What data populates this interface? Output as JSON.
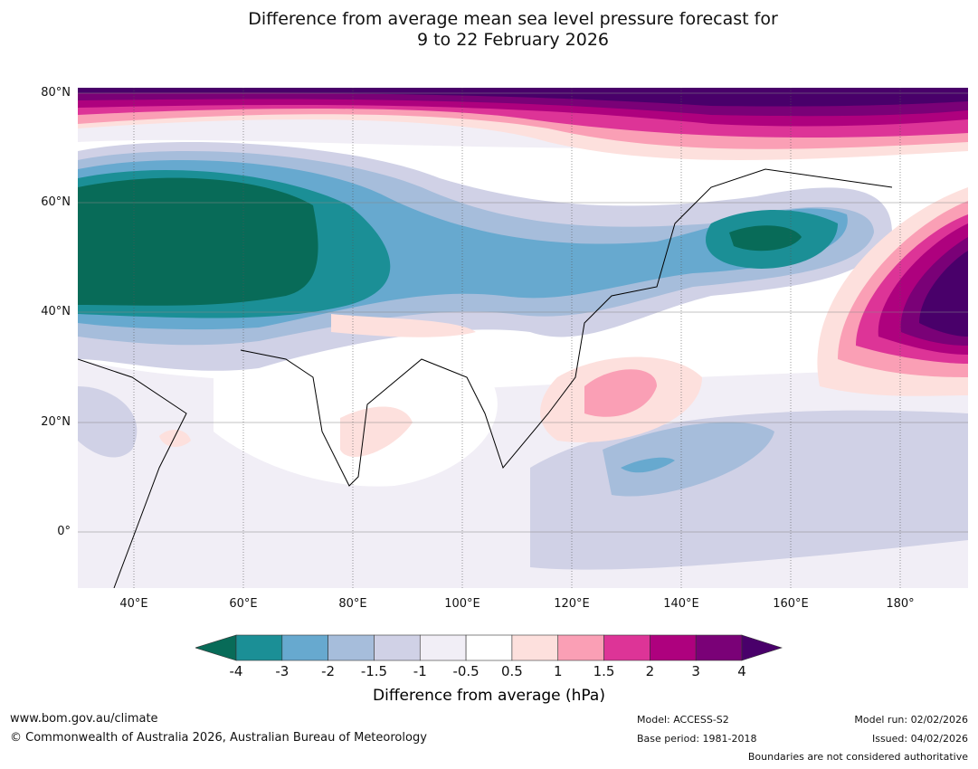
{
  "title": {
    "line1": "Difference from average mean sea level pressure forecast for",
    "line2": "9 to 22 February 2026"
  },
  "axes": {
    "lat_labels": [
      "80°N",
      "60°N",
      "40°N",
      "20°N",
      "0°"
    ],
    "lon_labels": [
      "40°E",
      "60°E",
      "80°E",
      "100°E",
      "120°E",
      "140°E",
      "160°E",
      "180°"
    ]
  },
  "colorbar": {
    "label": "Difference from average (hPa)",
    "ticks": [
      "-4",
      "-3",
      "-2",
      "-1.5",
      "-1",
      "-0.5",
      "0.5",
      "1",
      "1.5",
      "2",
      "3",
      "4"
    ],
    "colors": [
      "#1b8f96",
      "#67a9cf",
      "#a6bddb",
      "#d0d1e6",
      "#f1eef6",
      "#ffffff",
      "#fde0dd",
      "#fa9fb5",
      "#dd3497",
      "#ae017e",
      "#7a0177"
    ],
    "under_color": "#086b58",
    "over_color": "#49006a"
  },
  "footer": {
    "website": "www.bom.gov.au/climate",
    "copyright": "© Commonwealth of Australia 2026, Australian Bureau of Meteorology",
    "model": "Model: ACCESS-S2",
    "base_period": "Base period: 1981-2018",
    "model_run": "Model run: 02/02/2026",
    "issued": "Issued: 04/02/2026",
    "disclaimer": "Boundaries are not considered authoritative"
  }
}
